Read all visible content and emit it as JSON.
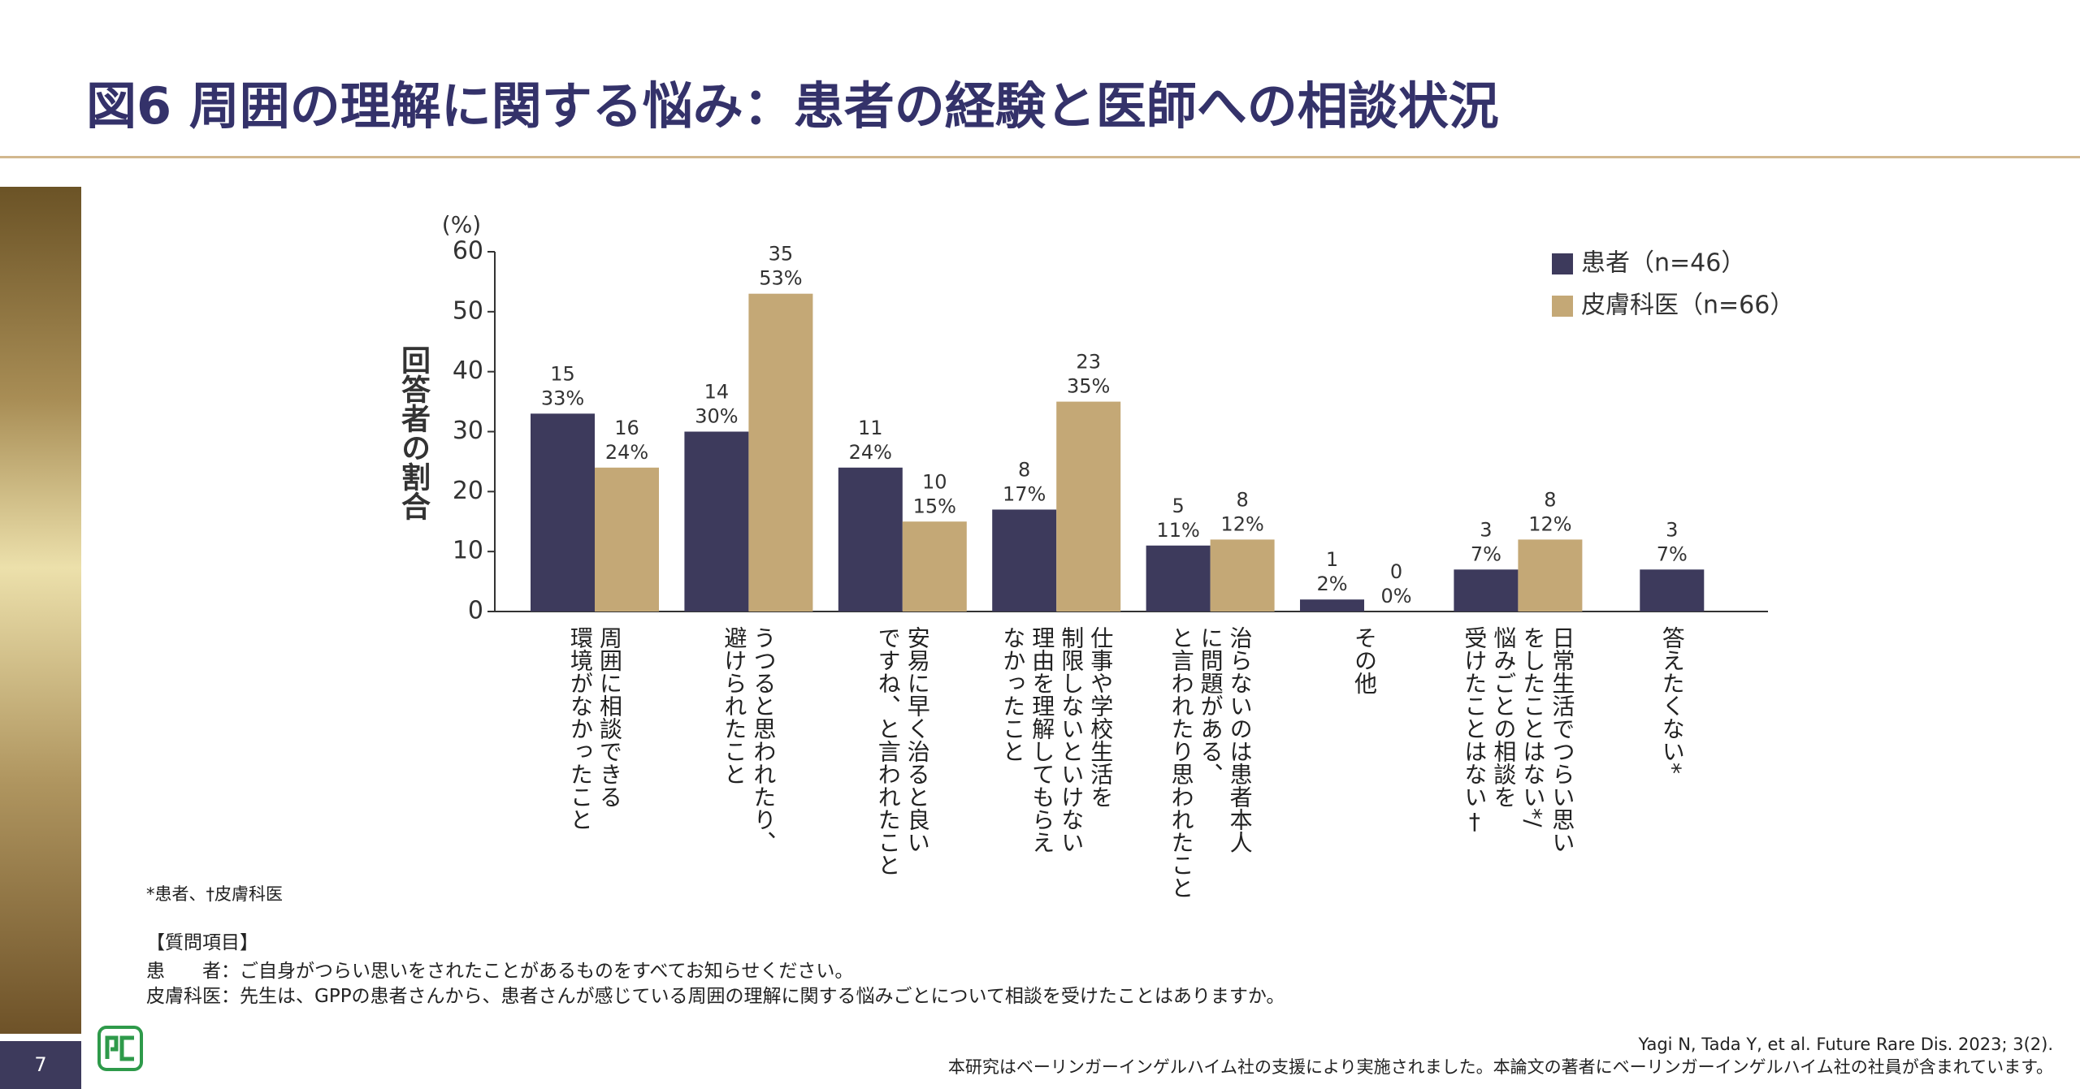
{
  "title": "図6 周囲の理解に関する悩み：患者の経験と医師への相談状況",
  "page_number": "7",
  "chart_data": {
    "type": "bar",
    "y_unit": "(%)",
    "y_label": "回答者の割合",
    "categories": [
      "周囲に相談できる\n環境がなかったこと",
      "うつると思われたり、\n避けられたこと",
      "安易に早く治ると良い\nですね、と言われたこと",
      "仕事や学校生活を\n制限しないといけない\n理由を理解してもらえ\nなかったこと",
      "治らないのは患者本人\nに問題がある、\nと言われたり思われたこと",
      "その他",
      "日常生活でつらい思い\nをしたことはない*/\n悩みごとの相談を\n受けたことはない†",
      "答えたくない*"
    ],
    "series": [
      {
        "name": "患者（n=46）",
        "color": "#3d3a5c",
        "values": [
          33,
          30,
          24,
          17,
          11,
          2,
          7,
          7
        ],
        "value_labels": [
          "33%",
          "30%",
          "24%",
          "17%",
          "11%",
          "2%",
          "7%",
          "7%"
        ],
        "counts": [
          15,
          14,
          11,
          8,
          5,
          1,
          3,
          3
        ]
      },
      {
        "name": "皮膚科医（n=66）",
        "color": "#c4a876",
        "values": [
          24,
          53,
          15,
          35,
          12,
          0,
          12,
          null
        ],
        "value_labels": [
          "24%",
          "53%",
          "15%",
          "35%",
          "12%",
          "0%",
          "12%",
          null
        ],
        "counts": [
          16,
          35,
          10,
          23,
          8,
          0,
          8,
          null
        ]
      }
    ],
    "ylim": [
      0,
      60
    ],
    "yticks": [
      0,
      10,
      20,
      30,
      40,
      50,
      60
    ],
    "legend": "upper right"
  },
  "footnote": "*患者、†皮膚科医",
  "questions": {
    "heading": "【質問項目】",
    "items": [
      {
        "label": "患　　者",
        "text": "：ご自身がつらい思いをされたことがあるものをすべてお知らせください。"
      },
      {
        "label": "皮膚科医",
        "text": "：先生は、GPPの患者さんから、患者さんが感じている周囲の理解に関する悩みごとについて相談を受けたことはありますか。"
      }
    ]
  },
  "citation": [
    "Yagi N, Tada Y, et al. Future Rare Dis. 2023; 3(2).",
    "本研究はベーリンガーインゲルハイム社の支援により実施されました。本論文の著者にベーリンガーインゲルハイム社の社員が含まれています。"
  ]
}
